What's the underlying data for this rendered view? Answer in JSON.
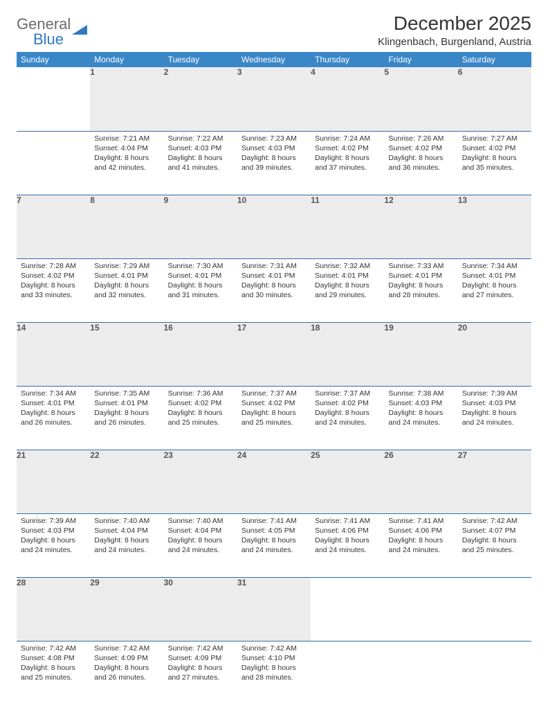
{
  "logo": {
    "main": "General",
    "sub": "Blue"
  },
  "title": "December 2025",
  "location": "Klingenbach, Burgenland, Austria",
  "colors": {
    "header_bg": "#3a87c8",
    "header_text": "#ffffff",
    "daynum_bg": "#ececec",
    "row_border": "#2f6fa8",
    "logo_gray": "#6b6b6b",
    "logo_blue": "#2f79c2"
  },
  "day_headers": [
    "Sunday",
    "Monday",
    "Tuesday",
    "Wednesday",
    "Thursday",
    "Friday",
    "Saturday"
  ],
  "weeks": [
    {
      "nums": [
        "",
        "1",
        "2",
        "3",
        "4",
        "5",
        "6"
      ],
      "cells": [
        null,
        {
          "sunrise": "7:21 AM",
          "sunset": "4:04 PM",
          "daylight": "8 hours and 42 minutes."
        },
        {
          "sunrise": "7:22 AM",
          "sunset": "4:03 PM",
          "daylight": "8 hours and 41 minutes."
        },
        {
          "sunrise": "7:23 AM",
          "sunset": "4:03 PM",
          "daylight": "8 hours and 39 minutes."
        },
        {
          "sunrise": "7:24 AM",
          "sunset": "4:02 PM",
          "daylight": "8 hours and 37 minutes."
        },
        {
          "sunrise": "7:26 AM",
          "sunset": "4:02 PM",
          "daylight": "8 hours and 36 minutes."
        },
        {
          "sunrise": "7:27 AM",
          "sunset": "4:02 PM",
          "daylight": "8 hours and 35 minutes."
        }
      ]
    },
    {
      "nums": [
        "7",
        "8",
        "9",
        "10",
        "11",
        "12",
        "13"
      ],
      "cells": [
        {
          "sunrise": "7:28 AM",
          "sunset": "4:02 PM",
          "daylight": "8 hours and 33 minutes."
        },
        {
          "sunrise": "7:29 AM",
          "sunset": "4:01 PM",
          "daylight": "8 hours and 32 minutes."
        },
        {
          "sunrise": "7:30 AM",
          "sunset": "4:01 PM",
          "daylight": "8 hours and 31 minutes."
        },
        {
          "sunrise": "7:31 AM",
          "sunset": "4:01 PM",
          "daylight": "8 hours and 30 minutes."
        },
        {
          "sunrise": "7:32 AM",
          "sunset": "4:01 PM",
          "daylight": "8 hours and 29 minutes."
        },
        {
          "sunrise": "7:33 AM",
          "sunset": "4:01 PM",
          "daylight": "8 hours and 28 minutes."
        },
        {
          "sunrise": "7:34 AM",
          "sunset": "4:01 PM",
          "daylight": "8 hours and 27 minutes."
        }
      ]
    },
    {
      "nums": [
        "14",
        "15",
        "16",
        "17",
        "18",
        "19",
        "20"
      ],
      "cells": [
        {
          "sunrise": "7:34 AM",
          "sunset": "4:01 PM",
          "daylight": "8 hours and 26 minutes."
        },
        {
          "sunrise": "7:35 AM",
          "sunset": "4:01 PM",
          "daylight": "8 hours and 26 minutes."
        },
        {
          "sunrise": "7:36 AM",
          "sunset": "4:02 PM",
          "daylight": "8 hours and 25 minutes."
        },
        {
          "sunrise": "7:37 AM",
          "sunset": "4:02 PM",
          "daylight": "8 hours and 25 minutes."
        },
        {
          "sunrise": "7:37 AM",
          "sunset": "4:02 PM",
          "daylight": "8 hours and 24 minutes."
        },
        {
          "sunrise": "7:38 AM",
          "sunset": "4:03 PM",
          "daylight": "8 hours and 24 minutes."
        },
        {
          "sunrise": "7:39 AM",
          "sunset": "4:03 PM",
          "daylight": "8 hours and 24 minutes."
        }
      ]
    },
    {
      "nums": [
        "21",
        "22",
        "23",
        "24",
        "25",
        "26",
        "27"
      ],
      "cells": [
        {
          "sunrise": "7:39 AM",
          "sunset": "4:03 PM",
          "daylight": "8 hours and 24 minutes."
        },
        {
          "sunrise": "7:40 AM",
          "sunset": "4:04 PM",
          "daylight": "8 hours and 24 minutes."
        },
        {
          "sunrise": "7:40 AM",
          "sunset": "4:04 PM",
          "daylight": "8 hours and 24 minutes."
        },
        {
          "sunrise": "7:41 AM",
          "sunset": "4:05 PM",
          "daylight": "8 hours and 24 minutes."
        },
        {
          "sunrise": "7:41 AM",
          "sunset": "4:06 PM",
          "daylight": "8 hours and 24 minutes."
        },
        {
          "sunrise": "7:41 AM",
          "sunset": "4:06 PM",
          "daylight": "8 hours and 24 minutes."
        },
        {
          "sunrise": "7:42 AM",
          "sunset": "4:07 PM",
          "daylight": "8 hours and 25 minutes."
        }
      ]
    },
    {
      "nums": [
        "28",
        "29",
        "30",
        "31",
        "",
        "",
        ""
      ],
      "cells": [
        {
          "sunrise": "7:42 AM",
          "sunset": "4:08 PM",
          "daylight": "8 hours and 25 minutes."
        },
        {
          "sunrise": "7:42 AM",
          "sunset": "4:09 PM",
          "daylight": "8 hours and 26 minutes."
        },
        {
          "sunrise": "7:42 AM",
          "sunset": "4:09 PM",
          "daylight": "8 hours and 27 minutes."
        },
        {
          "sunrise": "7:42 AM",
          "sunset": "4:10 PM",
          "daylight": "8 hours and 28 minutes."
        },
        null,
        null,
        null
      ]
    }
  ],
  "labels": {
    "sunrise": "Sunrise:",
    "sunset": "Sunset:",
    "daylight": "Daylight:"
  }
}
